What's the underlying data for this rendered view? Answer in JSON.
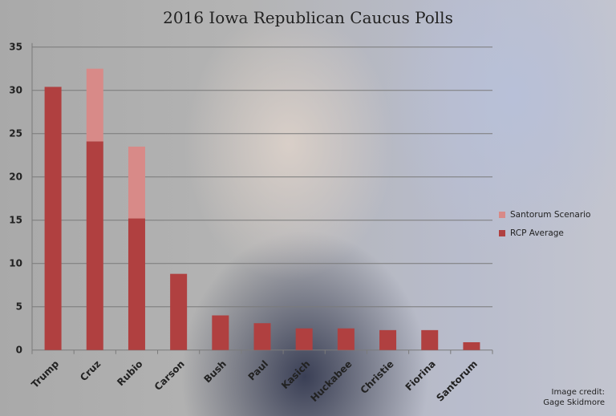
{
  "chart_data": {
    "type": "bar",
    "stacked": true,
    "title": "2016 Iowa Republican Caucus Polls",
    "categories": [
      "Trump",
      "Cruz",
      "Rubio",
      "Carson",
      "Bush",
      "Paul",
      "Kasich",
      "Huckabee",
      "Christie",
      "Fiorina",
      "Santorum"
    ],
    "series": [
      {
        "name": "RCP Average",
        "color": "#b04040",
        "values": [
          30.4,
          24.1,
          15.2,
          8.8,
          4.0,
          3.1,
          2.5,
          2.5,
          2.3,
          2.3,
          0.9
        ]
      },
      {
        "name": "Santorum Scenario",
        "color": "#d88a88",
        "values": [
          0,
          8.4,
          8.3,
          0,
          0,
          0,
          0,
          0,
          0,
          0,
          0
        ]
      }
    ],
    "ylim": [
      0,
      35
    ],
    "yticks": [
      0,
      5,
      10,
      15,
      20,
      25,
      30,
      35
    ],
    "grid": true,
    "legend": "right"
  },
  "credit": {
    "line1": "Image credit:",
    "line2": "Gage Skidmore"
  }
}
